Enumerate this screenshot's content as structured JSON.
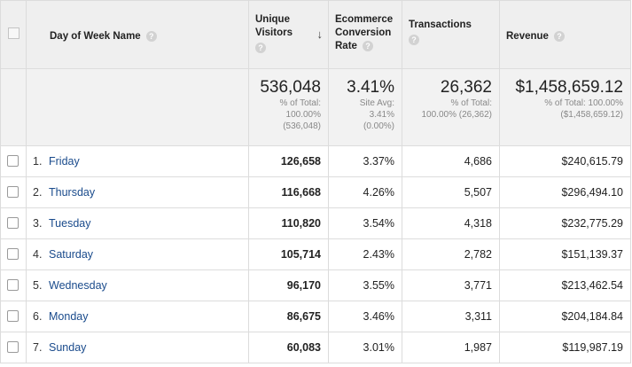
{
  "header": {
    "dimension_label": "Day of Week Name",
    "columns": {
      "unique_visitors": [
        "Unique",
        "Visitors"
      ],
      "ecommerce_conversion_rate": [
        "Ecommerce",
        "Conversion",
        "Rate"
      ],
      "transactions": "Transactions",
      "revenue": "Revenue"
    },
    "help_glyph": "?",
    "sort_arrow": "↓"
  },
  "totals": {
    "unique_visitors": {
      "value": "536,048",
      "lines": [
        "% of Total:",
        "100.00%",
        "(536,048)"
      ]
    },
    "ecommerce_conversion_rate": {
      "value": "3.41%",
      "lines": [
        "Site Avg:",
        "3.41%",
        "(0.00%)"
      ]
    },
    "transactions": {
      "value": "26,362",
      "lines": [
        "% of Total:",
        "100.00% (26,362)"
      ]
    },
    "revenue": {
      "value": "$1,458,659.12",
      "lines": [
        "% of Total: 100.00%",
        "($1,458,659.12)"
      ]
    }
  },
  "rows": [
    {
      "rank": "1.",
      "day": "Friday",
      "unique_visitors": "126,658",
      "ecr": "3.37%",
      "transactions": "4,686",
      "revenue": "$240,615.79"
    },
    {
      "rank": "2.",
      "day": "Thursday",
      "unique_visitors": "116,668",
      "ecr": "4.26%",
      "transactions": "5,507",
      "revenue": "$296,494.10"
    },
    {
      "rank": "3.",
      "day": "Tuesday",
      "unique_visitors": "110,820",
      "ecr": "3.54%",
      "transactions": "4,318",
      "revenue": "$232,775.29"
    },
    {
      "rank": "4.",
      "day": "Saturday",
      "unique_visitors": "105,714",
      "ecr": "2.43%",
      "transactions": "2,782",
      "revenue": "$151,139.37"
    },
    {
      "rank": "5.",
      "day": "Wednesday",
      "unique_visitors": "96,170",
      "ecr": "3.55%",
      "transactions": "3,771",
      "revenue": "$213,462.54"
    },
    {
      "rank": "6.",
      "day": "Monday",
      "unique_visitors": "86,675",
      "ecr": "3.46%",
      "transactions": "3,311",
      "revenue": "$204,184.84"
    },
    {
      "rank": "7.",
      "day": "Sunday",
      "unique_visitors": "60,083",
      "ecr": "3.01%",
      "transactions": "1,987",
      "revenue": "$119,987.19"
    }
  ],
  "colors": {
    "link": "#1a4b8c",
    "header_bg": "#efefef",
    "totals_bg": "#f2f2f2",
    "grid": "#dcdcdc"
  }
}
